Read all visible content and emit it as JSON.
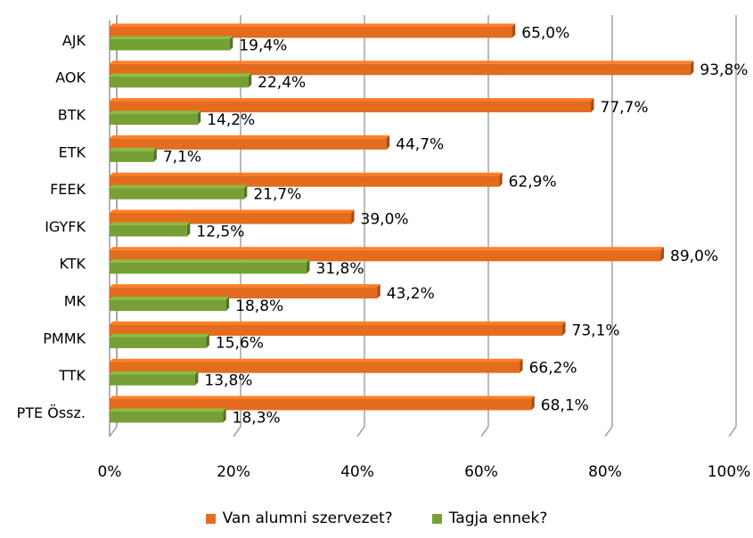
{
  "chart_data": {
    "type": "bar",
    "orientation": "horizontal",
    "style": "3d",
    "categories": [
      "AJK",
      "AOK",
      "BTK",
      "ETK",
      "FEEK",
      "IGYFK",
      "KTK",
      "MK",
      "PMMK",
      "TTK",
      "PTE Össz."
    ],
    "series": [
      {
        "name": "Van alumni szervezet?",
        "color": "#E36C1F",
        "values": [
          65.0,
          93.8,
          77.7,
          44.7,
          62.9,
          39.0,
          89.0,
          43.2,
          73.1,
          66.2,
          68.1
        ],
        "labels": [
          "65,0%",
          "93,8%",
          "77,7%",
          "44,7%",
          "62,9%",
          "39,0%",
          "89,0%",
          "43,2%",
          "73,1%",
          "66,2%",
          "68,1%"
        ]
      },
      {
        "name": "Tagja ennek?",
        "color": "#76A035",
        "values": [
          19.4,
          22.4,
          14.2,
          7.1,
          21.7,
          12.5,
          31.8,
          18.8,
          15.6,
          13.8,
          18.3
        ],
        "labels": [
          "19,4%",
          "22,4%",
          "14,2%",
          "7,1%",
          "21,7%",
          "12,5%",
          "31,8%",
          "18,8%",
          "15,6%",
          "13,8%",
          "18,3%"
        ]
      }
    ],
    "xlim": [
      0,
      100
    ],
    "ticks": [
      0,
      20,
      40,
      60,
      80,
      100
    ],
    "tick_labels": [
      "0%",
      "20%",
      "40%",
      "60%",
      "80%",
      "100%"
    ],
    "grid": true,
    "legend_position": "bottom"
  }
}
